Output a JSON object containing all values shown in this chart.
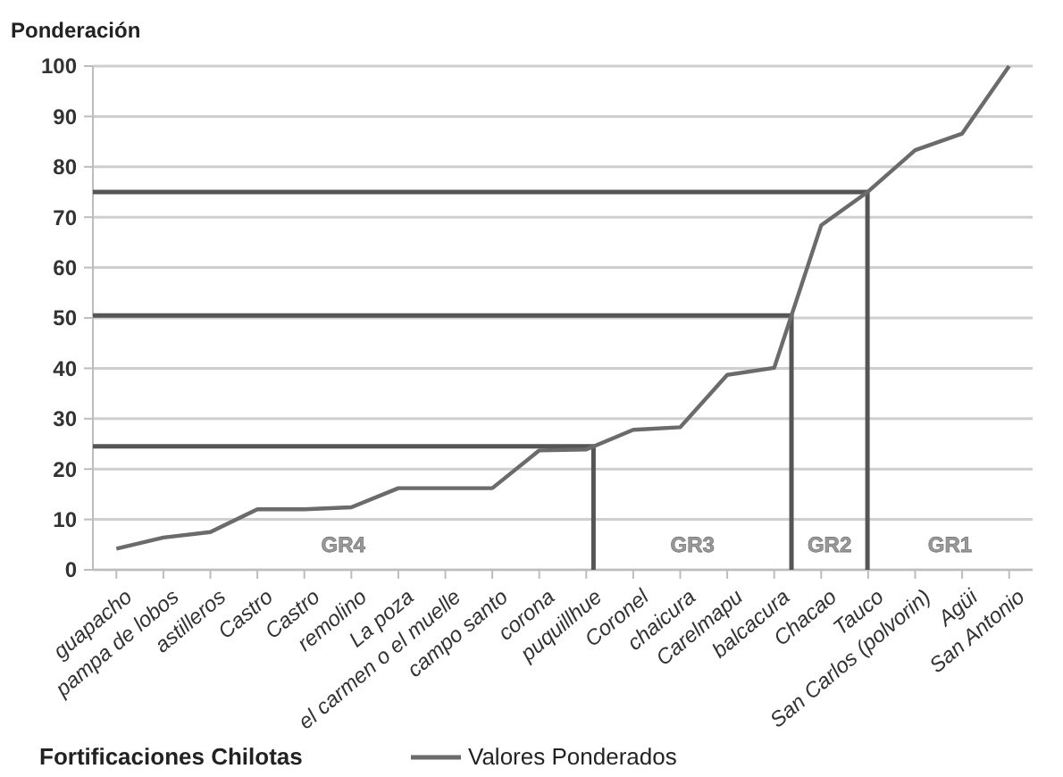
{
  "chart_data": {
    "type": "line",
    "ylabel": "Ponderación",
    "xlabel": "Fortificaciones Chilotas",
    "categories": [
      "guapacho",
      "pampa de lobos",
      "astilleros",
      "Castro",
      "Castro",
      "remolino",
      "La poza",
      "el carmen o el muelle",
      "campo santo",
      "corona",
      "puquillhue",
      "Coronel",
      "chaicura",
      "Carelmapu",
      "balcacura",
      "Chacao",
      "Tauco",
      "San Carlos (polvorin)",
      "Agüi",
      "San Antonio"
    ],
    "series": [
      {
        "name": "Valores Ponderados",
        "color": "#6b6b6b",
        "values": [
          4.2,
          6.4,
          7.5,
          12,
          12,
          12.4,
          16.2,
          16.2,
          16.2,
          23.7,
          23.9,
          27.8,
          28.3,
          38.7,
          40.1,
          68.4,
          75.1,
          83.3,
          86.6,
          100
        ]
      }
    ],
    "ylim": [
      0,
      100
    ],
    "yticks": [
      0,
      10,
      20,
      30,
      40,
      50,
      60,
      70,
      80,
      90,
      100
    ],
    "grid": "y",
    "legend": "bottom",
    "marker": "none",
    "line_style": "solid",
    "ref_lines": [
      {
        "axis": "y",
        "value": 24.5,
        "color": "#555555"
      },
      {
        "axis": "y",
        "value": 50.5,
        "color": "#555555"
      },
      {
        "axis": "y",
        "value": 75,
        "color": "#555555"
      }
    ],
    "annotations": [
      "GR4",
      "GR3",
      "GR2",
      "GR1"
    ]
  }
}
